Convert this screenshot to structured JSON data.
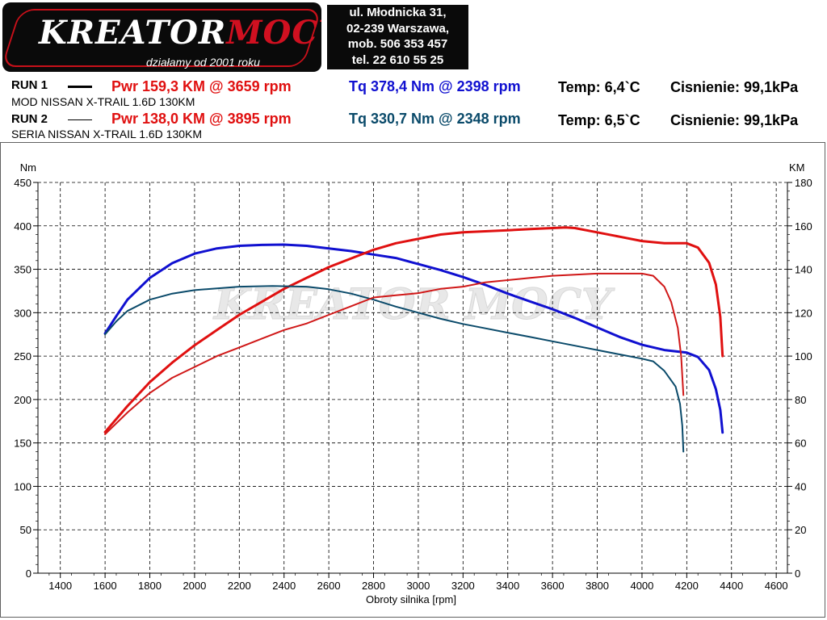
{
  "header": {
    "logo_word_1": "KREATOR",
    "logo_word_2": "MOCY",
    "tagline": "działamy od 2001 roku",
    "address_lines": [
      "ul. Młodnicka 31,",
      "02-239  Warszawa,",
      "mob.  506 353 457",
      "tel.  22 610 55 25"
    ]
  },
  "runs": [
    {
      "label": "RUN 1",
      "pwr": "Pwr  159,3 KM @ 3659 rpm",
      "tq": "Tq  378,4 Nm @ 2398 rpm",
      "temp": "Temp: 6,4`C",
      "pressure": "Cisnienie: 99,1kPa",
      "car": "MOD NISSAN X-TRAIL 1.6D 130KM",
      "tq_color": "#1010d0",
      "pwr_color": "#e01010"
    },
    {
      "label": "RUN 2",
      "pwr": "Pwr  138,0 KM @ 3895 rpm",
      "tq": "Tq  330,7 Nm @ 2348 rpm",
      "temp": "Temp: 6,5`C",
      "pressure": "Cisnienie: 99,1kPa",
      "car": "SERIA NISSAN X-TRAIL 1.6D 130KM",
      "tq_color": "#0a4a6a",
      "pwr_color": "#d01818"
    }
  ],
  "chart_data": {
    "type": "line",
    "xlabel": "Obroty silnika [rpm]",
    "ylabel_left": "Nm",
    "ylabel_right": "KM",
    "xlim": [
      1300,
      4650
    ],
    "ylim_left": [
      0,
      450
    ],
    "ylim_right": [
      0,
      180
    ],
    "x_ticks": [
      1400,
      1600,
      1800,
      2000,
      2200,
      2400,
      2600,
      2800,
      3000,
      3200,
      3400,
      3600,
      3800,
      4000,
      4200,
      4400,
      4600
    ],
    "y_ticks_left": [
      0,
      50,
      100,
      150,
      200,
      250,
      300,
      350,
      400,
      450
    ],
    "y_ticks_right": [
      0,
      20,
      40,
      60,
      80,
      100,
      120,
      140,
      160,
      180
    ],
    "grid": true,
    "watermark": "KREATOR MOCY",
    "series": [
      {
        "axis": "left",
        "color": "#1010d0",
        "width": 3,
        "points": [
          [
            1600,
            276
          ],
          [
            1650,
            296
          ],
          [
            1700,
            315
          ],
          [
            1800,
            340
          ],
          [
            1900,
            357
          ],
          [
            2000,
            368
          ],
          [
            2100,
            374
          ],
          [
            2200,
            377
          ],
          [
            2300,
            378
          ],
          [
            2398,
            378.4
          ],
          [
            2500,
            377
          ],
          [
            2600,
            374
          ],
          [
            2700,
            371
          ],
          [
            2800,
            367
          ],
          [
            2900,
            363
          ],
          [
            3000,
            356
          ],
          [
            3100,
            349
          ],
          [
            3200,
            341
          ],
          [
            3300,
            332
          ],
          [
            3400,
            322
          ],
          [
            3500,
            313
          ],
          [
            3600,
            304
          ],
          [
            3700,
            294
          ],
          [
            3800,
            283
          ],
          [
            3900,
            272
          ],
          [
            4000,
            263
          ],
          [
            4100,
            257
          ],
          [
            4200,
            254
          ],
          [
            4250,
            249
          ],
          [
            4300,
            234
          ],
          [
            4330,
            212
          ],
          [
            4350,
            188
          ],
          [
            4360,
            162
          ]
        ]
      },
      {
        "axis": "right",
        "color": "#e01010",
        "width": 3,
        "points": [
          [
            1600,
            65
          ],
          [
            1700,
            77
          ],
          [
            1800,
            88
          ],
          [
            1900,
            97
          ],
          [
            2000,
            105
          ],
          [
            2100,
            112
          ],
          [
            2200,
            119
          ],
          [
            2300,
            125
          ],
          [
            2400,
            131
          ],
          [
            2500,
            136
          ],
          [
            2600,
            141
          ],
          [
            2700,
            145
          ],
          [
            2800,
            149
          ],
          [
            2900,
            152
          ],
          [
            3000,
            154
          ],
          [
            3100,
            156
          ],
          [
            3200,
            157
          ],
          [
            3300,
            157.5
          ],
          [
            3400,
            158
          ],
          [
            3500,
            158.5
          ],
          [
            3600,
            159
          ],
          [
            3659,
            159.3
          ],
          [
            3700,
            159
          ],
          [
            3800,
            157
          ],
          [
            3900,
            155
          ],
          [
            4000,
            153
          ],
          [
            4100,
            152
          ],
          [
            4200,
            152
          ],
          [
            4250,
            150
          ],
          [
            4300,
            143
          ],
          [
            4330,
            133
          ],
          [
            4350,
            118
          ],
          [
            4360,
            100
          ]
        ]
      },
      {
        "axis": "left",
        "color": "#0a4a6a",
        "width": 2,
        "points": [
          [
            1600,
            275
          ],
          [
            1650,
            290
          ],
          [
            1700,
            302
          ],
          [
            1800,
            315
          ],
          [
            1900,
            322
          ],
          [
            2000,
            326
          ],
          [
            2100,
            328
          ],
          [
            2200,
            330
          ],
          [
            2348,
            330.7
          ],
          [
            2500,
            330
          ],
          [
            2600,
            327
          ],
          [
            2700,
            322
          ],
          [
            2800,
            315
          ],
          [
            2900,
            307
          ],
          [
            3000,
            300
          ],
          [
            3100,
            293
          ],
          [
            3200,
            287
          ],
          [
            3300,
            282
          ],
          [
            3400,
            277
          ],
          [
            3500,
            272
          ],
          [
            3600,
            267
          ],
          [
            3700,
            262
          ],
          [
            3800,
            257
          ],
          [
            3900,
            252
          ],
          [
            4000,
            247
          ],
          [
            4050,
            244
          ],
          [
            4100,
            233
          ],
          [
            4150,
            215
          ],
          [
            4170,
            195
          ],
          [
            4180,
            170
          ],
          [
            4185,
            140
          ]
        ]
      },
      {
        "axis": "right",
        "color": "#d01818",
        "width": 2,
        "points": [
          [
            1600,
            64
          ],
          [
            1700,
            74
          ],
          [
            1800,
            83
          ],
          [
            1900,
            90
          ],
          [
            2000,
            95
          ],
          [
            2100,
            100
          ],
          [
            2200,
            104
          ],
          [
            2300,
            108
          ],
          [
            2400,
            112
          ],
          [
            2500,
            115
          ],
          [
            2600,
            119
          ],
          [
            2700,
            123
          ],
          [
            2800,
            127
          ],
          [
            2900,
            128
          ],
          [
            3000,
            129
          ],
          [
            3100,
            131
          ],
          [
            3200,
            132
          ],
          [
            3300,
            134
          ],
          [
            3400,
            135
          ],
          [
            3500,
            136
          ],
          [
            3600,
            137
          ],
          [
            3700,
            137.5
          ],
          [
            3800,
            138
          ],
          [
            3895,
            138
          ],
          [
            4000,
            138
          ],
          [
            4050,
            137
          ],
          [
            4100,
            132
          ],
          [
            4130,
            125
          ],
          [
            4160,
            113
          ],
          [
            4175,
            100
          ],
          [
            4185,
            82
          ]
        ]
      }
    ]
  }
}
